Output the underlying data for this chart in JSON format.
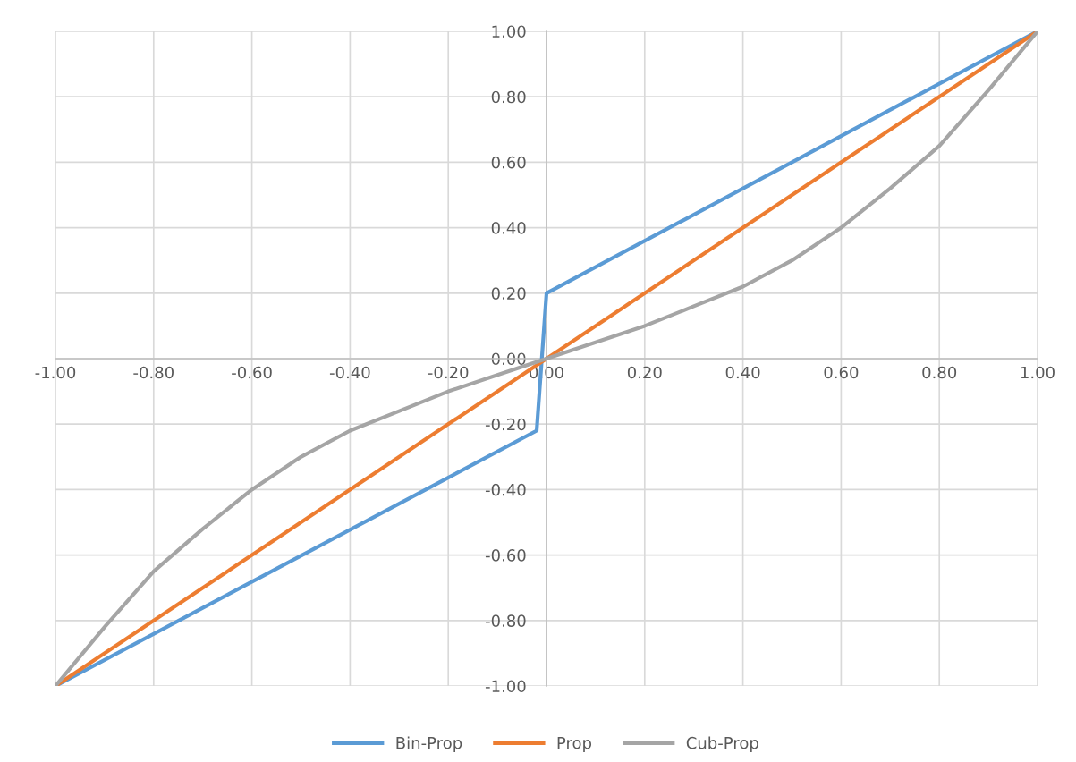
{
  "chart_data": {
    "type": "line",
    "xlim": [
      -1,
      1
    ],
    "ylim": [
      -1,
      1
    ],
    "xticks": [
      {
        "value": -1,
        "label": "-1.00"
      },
      {
        "value": -0.8,
        "label": "-0.80"
      },
      {
        "value": -0.6,
        "label": "-0.60"
      },
      {
        "value": -0.4,
        "label": "-0.40"
      },
      {
        "value": -0.2,
        "label": "-0.20"
      },
      {
        "value": 0,
        "label": "0.00"
      },
      {
        "value": 0.2,
        "label": "0.20"
      },
      {
        "value": 0.4,
        "label": "0.40"
      },
      {
        "value": 0.6,
        "label": "0.60"
      },
      {
        "value": 0.8,
        "label": "0.80"
      },
      {
        "value": 1,
        "label": "1.00"
      }
    ],
    "yticks": [
      {
        "value": -1,
        "label": "-1.00"
      },
      {
        "value": -0.8,
        "label": "-0.80"
      },
      {
        "value": -0.6,
        "label": "-0.60"
      },
      {
        "value": -0.4,
        "label": "-0.40"
      },
      {
        "value": -0.2,
        "label": "-0.20"
      },
      {
        "value": 0,
        "label": "0.00"
      },
      {
        "value": 0.2,
        "label": "0.20"
      },
      {
        "value": 0.4,
        "label": "0.40"
      },
      {
        "value": 0.6,
        "label": "0.60"
      },
      {
        "value": 0.8,
        "label": "0.80"
      },
      {
        "value": 1,
        "label": "1.00"
      }
    ],
    "grid": true,
    "legend": "bottom",
    "marker": "none",
    "line_style": "solid",
    "series": [
      {
        "name": "Bin-Prop",
        "color": "#5b9bd5",
        "x": [
          -1,
          -0.02,
          0,
          1
        ],
        "values": [
          -1,
          -0.22,
          0.2,
          1
        ]
      },
      {
        "name": "Prop",
        "color": "#ed7d31",
        "x": [
          -1,
          1
        ],
        "values": [
          -1,
          1
        ]
      },
      {
        "name": "Cub-Prop",
        "color": "#a5a5a5",
        "x": [
          -1,
          -0.9,
          -0.8,
          -0.7,
          -0.6,
          -0.5,
          -0.4,
          -0.3,
          -0.2,
          -0.1,
          0,
          0.1,
          0.2,
          0.3,
          0.4,
          0.5,
          0.6,
          0.7,
          0.8,
          0.9,
          1
        ],
        "values": [
          -1,
          -0.82,
          -0.65,
          -0.52,
          -0.4,
          -0.3,
          -0.22,
          -0.16,
          -0.1,
          -0.05,
          0,
          0.05,
          0.1,
          0.16,
          0.22,
          0.3,
          0.4,
          0.52,
          0.65,
          0.82,
          1
        ]
      }
    ]
  }
}
